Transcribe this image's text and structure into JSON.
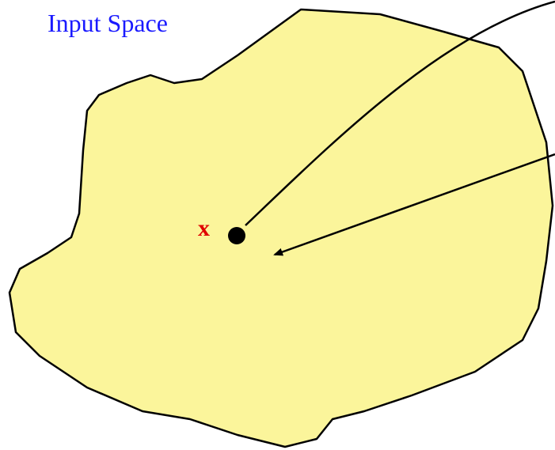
{
  "title": "Input Space",
  "point_label": "x"
}
